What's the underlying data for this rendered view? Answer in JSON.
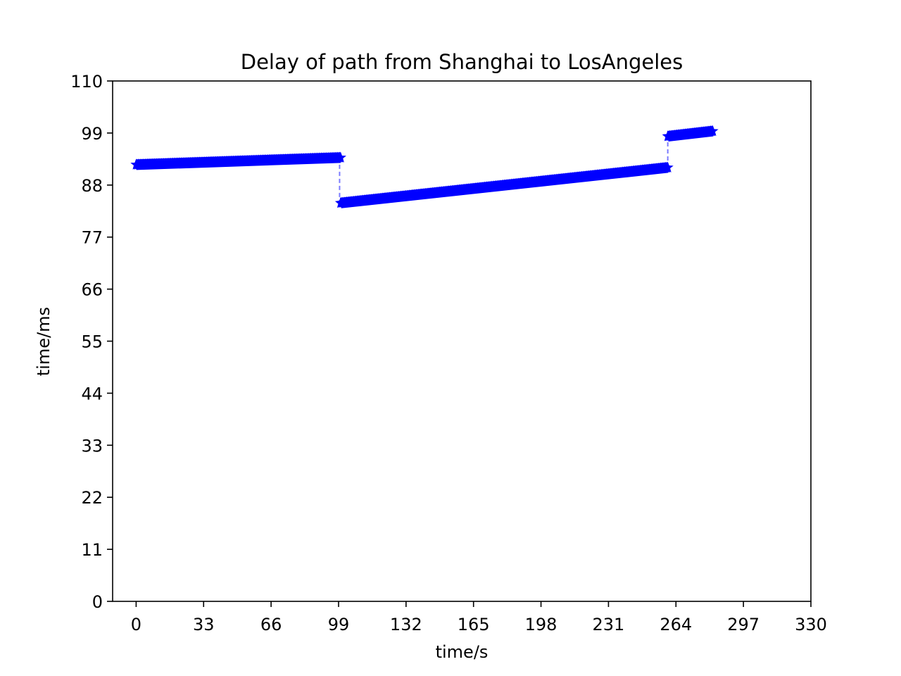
{
  "chart_data": {
    "type": "scatter",
    "title": "Delay of path from Shanghai to LosAngeles",
    "xlabel": "time/s",
    "ylabel": "time/ms",
    "xlim": [
      -11.5,
      330
    ],
    "ylim": [
      0,
      110
    ],
    "x_ticks": [
      "0",
      "33",
      "66",
      "99",
      "132",
      "165",
      "198",
      "231",
      "264",
      "297",
      "330"
    ],
    "y_ticks": [
      "0",
      "11",
      "22",
      "33",
      "44",
      "55",
      "66",
      "77",
      "88",
      "99",
      "110"
    ],
    "grid": false,
    "legend": "none",
    "marker": "star",
    "color": "#0000ff",
    "connector_color": "#7b7bff",
    "series": [
      {
        "segments": [
          {
            "x_start": 0,
            "x_end": 100,
            "y_start": 92.3,
            "y_end": 93.8
          },
          {
            "x_start": 100,
            "x_end": 260,
            "y_start": 84.2,
            "y_end": 91.7
          },
          {
            "x_start": 260,
            "x_end": 282,
            "y_start": 98.3,
            "y_end": 99.4
          }
        ],
        "jumps": [
          {
            "x": 99.5,
            "y_from": 93.8,
            "y_to": 84.2
          },
          {
            "x": 260,
            "y_from": 91.7,
            "y_to": 98.3
          }
        ]
      }
    ]
  }
}
